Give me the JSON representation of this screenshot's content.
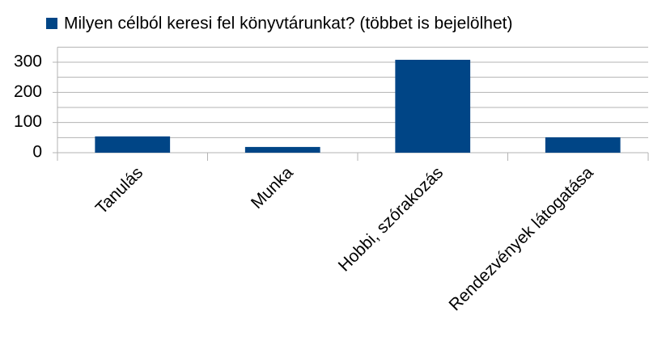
{
  "chart_data": {
    "type": "bar",
    "categories": [
      "Tanulás",
      "Munka",
      "Hobbi, szórakozás",
      "Rendezvények látogatása"
    ],
    "series": [
      {
        "name": "Milyen célból keresi fel könyvtárunkat? (többet is bejelölhet)",
        "color": "#004586",
        "values": [
          54,
          19,
          308,
          51
        ]
      }
    ],
    "ylim": [
      0,
      350
    ],
    "yticks": [
      0,
      100,
      200,
      300
    ],
    "minor_yticks": [
      50,
      150,
      250,
      350
    ],
    "grid": true,
    "legend": "top"
  }
}
